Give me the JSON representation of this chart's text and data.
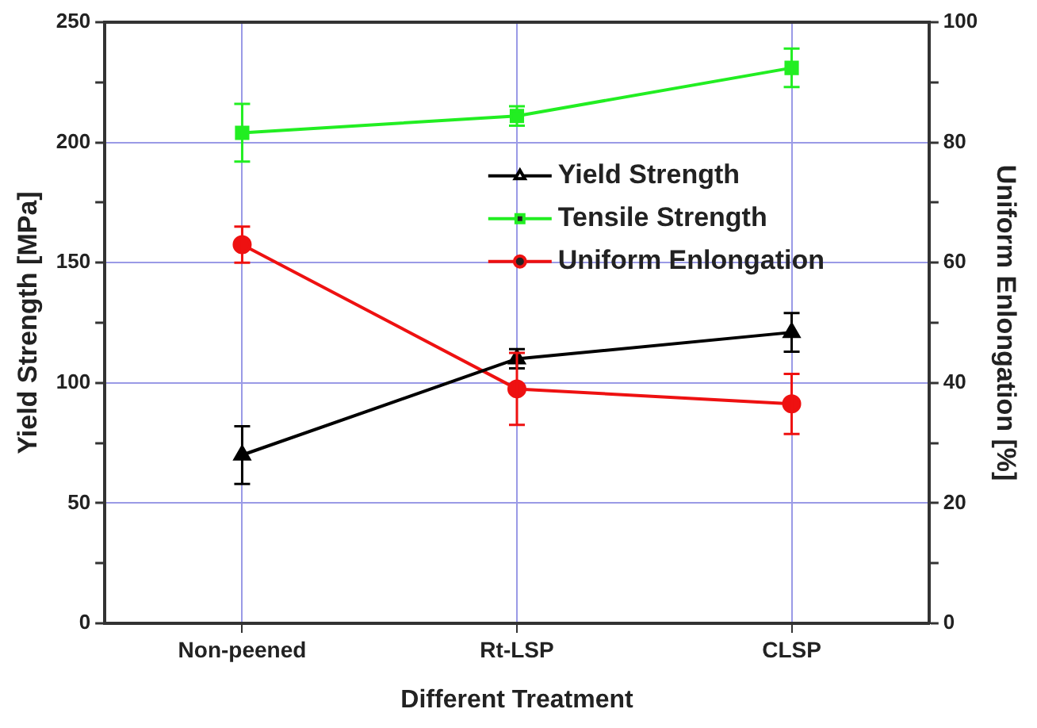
{
  "chart_data": {
    "type": "line",
    "xlabel": "Different Treatment",
    "ylabel": "Yield Strength [MPa]",
    "y2label": "Uniform Enlongation [%]",
    "categories": [
      "Non-peened",
      "Rt-LSP",
      "CLSP"
    ],
    "series": [
      {
        "name": "Yield Strength",
        "color": "#000000",
        "marker": "triangle",
        "values": [
          70,
          110,
          121
        ],
        "errors": [
          12,
          4,
          8
        ]
      },
      {
        "name": "Tensile Strength",
        "color": "#22ee22",
        "marker": "square",
        "values": [
          204,
          211,
          231
        ],
        "errors": [
          12,
          4,
          8
        ]
      },
      {
        "name": "Uniform Enlongation",
        "color": "#ee1111",
        "marker": "circle",
        "axis": "y2",
        "values": [
          63,
          39,
          36.5
        ],
        "errors": [
          3,
          6,
          5
        ]
      }
    ],
    "ylim": [
      0,
      250
    ],
    "yticks": [
      0,
      {
        "value": 25,
        "label": null
      },
      50,
      {
        "value": 75,
        "label": null
      },
      100,
      {
        "value": 125,
        "label": null
      },
      150,
      {
        "value": 175,
        "label": null
      },
      200,
      {
        "value": 225,
        "label": null
      },
      250
    ],
    "y2lim": [
      0,
      100
    ],
    "y2ticks": [
      0,
      {
        "value": 10,
        "label": null
      },
      20,
      {
        "value": 30,
        "label": null
      },
      40,
      {
        "value": 50,
        "label": null
      },
      60,
      {
        "value": 70,
        "label": null
      },
      80,
      {
        "value": 90,
        "label": null
      },
      100
    ],
    "grid": true,
    "legend": "right",
    "line_style": "solid"
  }
}
